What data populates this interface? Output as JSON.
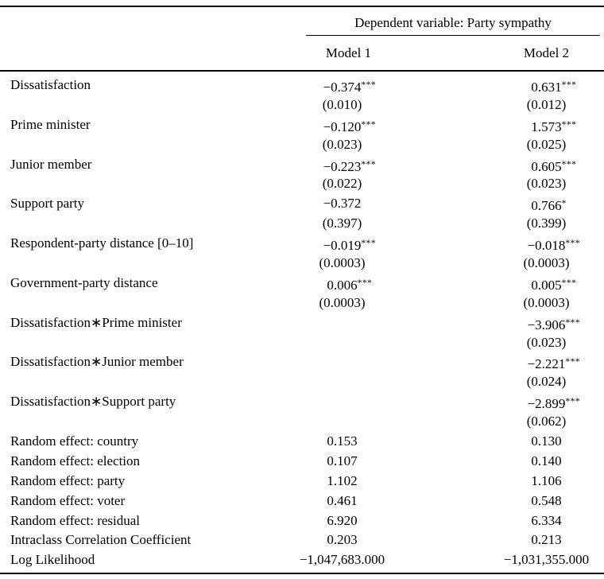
{
  "colors": {
    "text": "#000000",
    "background": "#ffffff",
    "rule": "#000000"
  },
  "table": {
    "spanner": "Dependent variable: Party sympathy",
    "col_headers": [
      "Model 1",
      "Model 2"
    ],
    "rows": [
      {
        "label": "Dissatisfaction",
        "m1": {
          "m": "−0.374",
          "s": "***"
        },
        "m2": {
          "m": "0.631",
          "s": "***"
        }
      },
      {
        "label": "",
        "m1": {
          "m": "(0.010)",
          "s": ""
        },
        "m2": {
          "m": "(0.012)",
          "s": ""
        }
      },
      {
        "label": "Prime minister",
        "m1": {
          "m": "−0.120",
          "s": "***"
        },
        "m2": {
          "m": "1.573",
          "s": "***"
        }
      },
      {
        "label": "",
        "m1": {
          "m": "(0.023)",
          "s": ""
        },
        "m2": {
          "m": "(0.025)",
          "s": ""
        }
      },
      {
        "label": "Junior member",
        "m1": {
          "m": "−0.223",
          "s": "***"
        },
        "m2": {
          "m": "0.605",
          "s": "***"
        }
      },
      {
        "label": "",
        "m1": {
          "m": "(0.022)",
          "s": ""
        },
        "m2": {
          "m": "(0.023)",
          "s": ""
        }
      },
      {
        "label": "Support party",
        "m1": {
          "m": "−0.372",
          "s": ""
        },
        "m2": {
          "m": "0.766",
          "s": "*"
        }
      },
      {
        "label": "",
        "m1": {
          "m": "(0.397)",
          "s": ""
        },
        "m2": {
          "m": "(0.399)",
          "s": ""
        }
      },
      {
        "label": "Respondent-party distance [0–10]",
        "m1": {
          "m": "−0.019",
          "s": "***"
        },
        "m2": {
          "m": "−0.018",
          "s": "***"
        }
      },
      {
        "label": "",
        "m1": {
          "m": "(0.0003)",
          "s": ""
        },
        "m2": {
          "m": "(0.0003)",
          "s": ""
        }
      },
      {
        "label": "Government-party distance",
        "m1": {
          "m": "0.006",
          "s": "***"
        },
        "m2": {
          "m": "0.005",
          "s": "***"
        }
      },
      {
        "label": "",
        "m1": {
          "m": "(0.0003)",
          "s": ""
        },
        "m2": {
          "m": "(0.0003)",
          "s": ""
        }
      },
      {
        "label": "Dissatisfaction∗Prime minister",
        "m1": {
          "m": "",
          "s": ""
        },
        "m2": {
          "m": "−3.906",
          "s": "***"
        }
      },
      {
        "label": "",
        "m1": {
          "m": "",
          "s": ""
        },
        "m2": {
          "m": "(0.023)",
          "s": ""
        }
      },
      {
        "label": "Dissatisfaction∗Junior member",
        "m1": {
          "m": "",
          "s": ""
        },
        "m2": {
          "m": "−2.221",
          "s": "***"
        }
      },
      {
        "label": "",
        "m1": {
          "m": "",
          "s": ""
        },
        "m2": {
          "m": "(0.024)",
          "s": ""
        }
      },
      {
        "label": "Dissatisfaction∗Support party",
        "m1": {
          "m": "",
          "s": ""
        },
        "m2": {
          "m": "−2.899",
          "s": "***"
        }
      },
      {
        "label": "",
        "m1": {
          "m": "",
          "s": ""
        },
        "m2": {
          "m": "(0.062)",
          "s": ""
        }
      },
      {
        "label": "Random effect: country",
        "m1": {
          "m": "0.153",
          "s": ""
        },
        "m2": {
          "m": "0.130",
          "s": ""
        }
      },
      {
        "label": "Random effect: election",
        "m1": {
          "m": "0.107",
          "s": ""
        },
        "m2": {
          "m": "0.140",
          "s": ""
        }
      },
      {
        "label": "Random effect: party",
        "m1": {
          "m": "1.102",
          "s": ""
        },
        "m2": {
          "m": "1.106",
          "s": ""
        }
      },
      {
        "label": "Random effect: voter",
        "m1": {
          "m": "0.461",
          "s": ""
        },
        "m2": {
          "m": "0.548",
          "s": ""
        }
      },
      {
        "label": "Random effect: residual",
        "m1": {
          "m": "6.920",
          "s": ""
        },
        "m2": {
          "m": "6.334",
          "s": ""
        }
      },
      {
        "label": "Intraclass Correlation Coefficient",
        "m1": {
          "m": "0.203",
          "s": ""
        },
        "m2": {
          "m": "0.213",
          "s": ""
        }
      },
      {
        "label": "Log Likelihood",
        "m1": {
          "m": "−1,047,683.000",
          "s": ""
        },
        "m2": {
          "m": "−1,031,355.000",
          "s": ""
        }
      }
    ]
  }
}
